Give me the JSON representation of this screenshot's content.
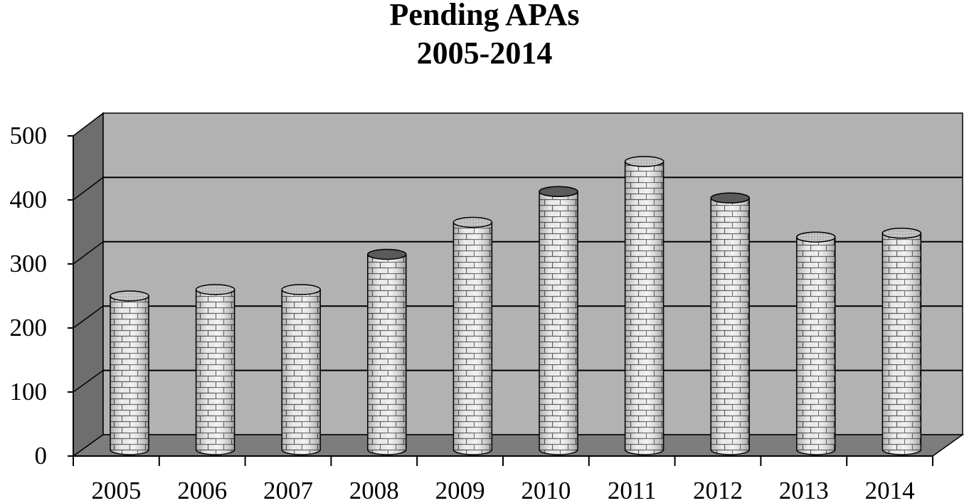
{
  "chart_data": {
    "type": "bar",
    "title": "Pending APAs",
    "subtitle": "2005-2014",
    "categories": [
      "2005",
      "2006",
      "2007",
      "2008",
      "2009",
      "2010",
      "2011",
      "2012",
      "2013",
      "2014"
    ],
    "values": [
      240,
      250,
      250,
      305,
      355,
      403,
      450,
      393,
      332,
      338
    ],
    "y_ticks": [
      "0",
      "100",
      "200",
      "300",
      "400",
      "500"
    ],
    "ylim": [
      0,
      500
    ],
    "grid": true,
    "legend": "none",
    "colors": {
      "back_wall": "#b2b2b2",
      "side_wall": "#6e6e6e",
      "floor": "#7d7d7d",
      "bar_fill": "#f0f0f0",
      "bar_top": "#bdbdbd",
      "bar_top_dark": "#5a5a5a"
    },
    "bar_pattern": "brick"
  }
}
